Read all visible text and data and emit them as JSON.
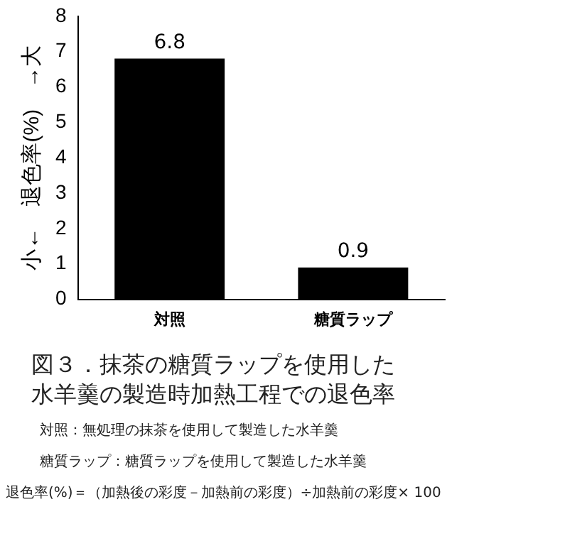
{
  "chart_data": {
    "type": "bar",
    "title": "図３．抹茶の糖質ラップを使用した水羊羹の製造時加熱工程での退色率",
    "ylabel": "小←　退色率(%)　→大",
    "categories": [
      "対照",
      "糖質ラップ"
    ],
    "values": [
      6.8,
      0.9
    ],
    "color": "#000000",
    "ylim": [
      0,
      8
    ],
    "yticks": [
      0,
      1,
      2,
      3,
      4,
      5,
      6,
      7,
      8
    ],
    "grid": false,
    "legend": false,
    "data_labels": true,
    "annotations": [
      "対照：無処理の抹茶を使用して製造した水羊羹",
      "糖質ラップ：糖質ラップを使用して製造した水羊羹",
      "退色率(%)＝（加熱後の彩度－加熱前の彩度）÷加熱前の彩度× 100"
    ]
  }
}
